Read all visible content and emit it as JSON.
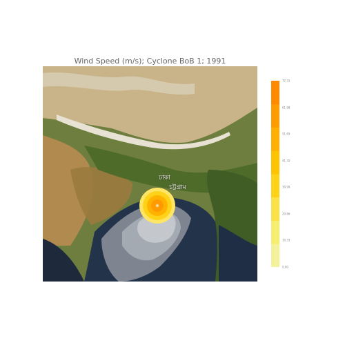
{
  "title": "Wind Speed (m/s); Cyclone BoB 1; 1991",
  "map": {
    "cities": [
      "ঢাকা",
      "চট্টগ্রাম"
    ]
  },
  "colorbar": {
    "ticks": [
      "0.00",
      "10.33",
      "20.66",
      "30.99",
      "41.32",
      "51.65",
      "61.98",
      "72.31"
    ],
    "min": 0,
    "max": 72.31,
    "colors": {
      "low": "#eef08a",
      "mid": "#ffd21a",
      "high": "#ff8a00"
    }
  }
}
